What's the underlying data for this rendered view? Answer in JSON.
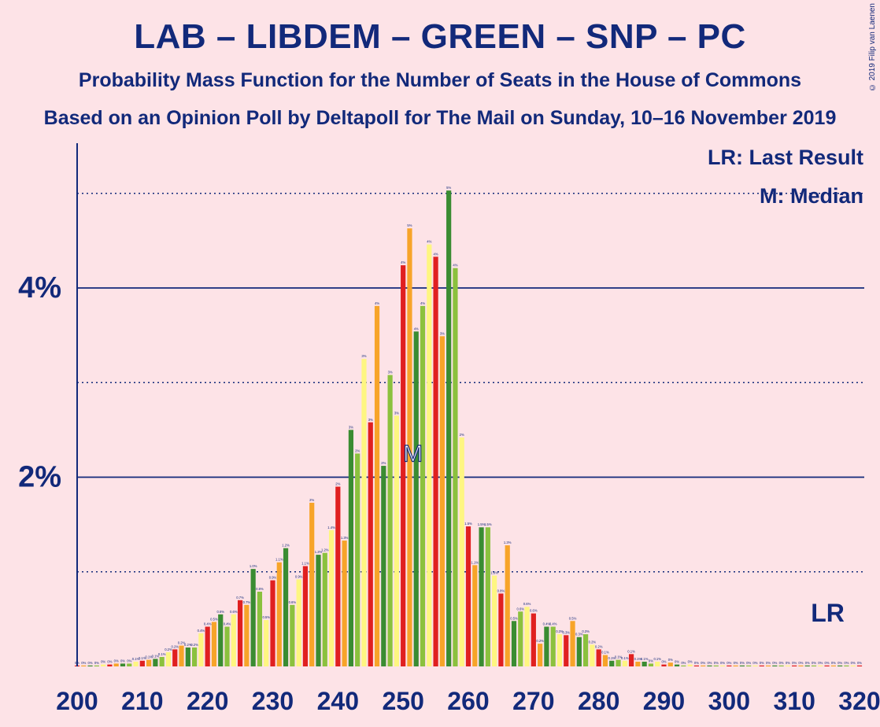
{
  "title": "LAB – LIBDEM – GREEN – SNP – PC",
  "subtitle": "Probability Mass Function for the Number of Seats in the House of Commons",
  "subtitle2": "Based on an Opinion Poll by Deltapoll for The Mail on Sunday, 10–16 November 2019",
  "copyright": "© 2019 Filip van Laenen",
  "legend": {
    "last_result": "LR: Last Result",
    "median": "M: Median"
  },
  "markers": {
    "median_symbol": "M",
    "last_result_symbol": "LR"
  },
  "colors": {
    "background": "#fde3e7",
    "axis": "#12297a",
    "palette": [
      "#e02020",
      "#f7a429",
      "#3a8c32",
      "#8bc13e",
      "#fef681"
    ]
  },
  "chart_data": {
    "type": "bar",
    "xlabel": "",
    "ylabel": "",
    "x_ticks": [
      "200",
      "210",
      "220",
      "230",
      "240",
      "250",
      "260",
      "270",
      "280",
      "290",
      "300",
      "310",
      "320"
    ],
    "y_ticks": [
      "2%",
      "4%"
    ],
    "ylim": [
      0,
      5.5
    ],
    "median_seat": 251,
    "last_result_seat": 315,
    "x": [
      200,
      201,
      202,
      203,
      204,
      205,
      206,
      207,
      208,
      209,
      210,
      211,
      212,
      213,
      214,
      215,
      216,
      217,
      218,
      219,
      220,
      221,
      222,
      223,
      224,
      225,
      226,
      227,
      228,
      229,
      230,
      231,
      232,
      233,
      234,
      235,
      236,
      237,
      238,
      239,
      240,
      241,
      242,
      243,
      244,
      245,
      246,
      247,
      248,
      249,
      250,
      251,
      252,
      253,
      254,
      255,
      256,
      257,
      258,
      259,
      260,
      261,
      262,
      263,
      264,
      265,
      266,
      267,
      268,
      269,
      270,
      271,
      272,
      273,
      274,
      275,
      276,
      277,
      278,
      279,
      280,
      281,
      282,
      283,
      284,
      285,
      286,
      287,
      288,
      289,
      290,
      291,
      292,
      293,
      294,
      295,
      296,
      297,
      298,
      299,
      300,
      301,
      302,
      303,
      304,
      305,
      306,
      307,
      308,
      309,
      310,
      311,
      312,
      313,
      314,
      315,
      316,
      317,
      318,
      319,
      320
    ],
    "values": [
      0.01,
      0.01,
      0.01,
      0.01,
      0.02,
      0.02,
      0.03,
      0.03,
      0.03,
      0.05,
      0.06,
      0.07,
      0.08,
      0.1,
      0.15,
      0.18,
      0.22,
      0.2,
      0.2,
      0.35,
      0.42,
      0.47,
      0.55,
      0.42,
      0.55,
      0.7,
      0.65,
      1.03,
      0.79,
      0.49,
      0.91,
      1.1,
      1.25,
      0.65,
      0.92,
      1.06,
      1.73,
      1.18,
      1.2,
      1.44,
      1.9,
      1.33,
      2.5,
      2.25,
      3.25,
      2.58,
      3.81,
      2.12,
      3.08,
      2.65,
      4.24,
      4.63,
      3.54,
      3.81,
      4.46,
      4.33,
      3.49,
      5.03,
      4.21,
      2.42,
      1.48,
      1.07,
      1.47,
      1.47,
      0.96,
      0.77,
      1.28,
      0.48,
      0.58,
      0.63,
      0.56,
      0.24,
      0.42,
      0.42,
      0.34,
      0.33,
      0.48,
      0.31,
      0.34,
      0.23,
      0.18,
      0.12,
      0.06,
      0.07,
      0.06,
      0.13,
      0.05,
      0.05,
      0.03,
      0.05,
      0.02,
      0.04,
      0.02,
      0.01,
      0.02,
      0.01,
      0.01,
      0.01,
      0.01,
      0.01,
      0.01,
      0.01,
      0.01,
      0.01,
      0.01,
      0.01,
      0.01,
      0.01,
      0.01,
      0.01,
      0.01,
      0.01,
      0.01,
      0.01,
      0.01,
      0.01,
      0.01,
      0.01,
      0.01,
      0.01,
      0.01
    ],
    "data_labels": [
      "0%",
      "0%",
      "0%",
      "0%",
      "0%",
      "0%",
      "0%",
      "0%",
      "0%",
      "0.1%",
      "0.1%",
      "0.1%",
      "0.1%",
      "0.1%",
      "0.2%",
      "0.2%",
      "0.2%",
      "0.2%",
      "0.2%",
      "0.4%",
      "0.4%",
      "0.5%",
      "0.6%",
      "0.4%",
      "0.6%",
      "0.7%",
      "0.7%",
      "1.0%",
      "0.8%",
      "0.5%",
      "0.9%",
      "1.1%",
      "1.2%",
      "0.6%",
      "0.9%",
      "1.1%",
      "2%",
      "1.2%",
      "1.2%",
      "1.4%",
      "2%",
      "1.3%",
      "3%",
      "2%",
      "3%",
      "3%",
      "4%",
      "2%",
      "3%",
      "3%",
      "4%",
      "5%",
      "4%",
      "4%",
      "4%",
      "4%",
      "3%",
      "5%",
      "4%",
      "2%",
      "1.5%",
      "1.1%",
      "1.5%",
      "1.5%",
      "1.0%",
      "0.8%",
      "1.3%",
      "0.5%",
      "0.6%",
      "0.6%",
      "0.6%",
      "0.2%",
      "0.4%",
      "0.4%",
      "0.3%",
      "0.3%",
      "0.5%",
      "0.3%",
      "0.3%",
      "0.2%",
      "0.2%",
      "0.1%",
      "0.1%",
      "0.1%",
      "0.1%",
      "0.1%",
      "0.1%",
      "0.1%",
      "0%",
      "0.1%",
      "0%",
      "0%",
      "0%",
      "0%",
      "0%",
      "0%",
      "0%",
      "0%",
      "0%",
      "0%",
      "0%",
      "0%",
      "0%",
      "0%",
      "0%",
      "0%",
      "0%",
      "0%",
      "0%",
      "0%",
      "0%",
      "0%",
      "0%",
      "0%",
      "0%",
      "0%",
      "0%",
      "0%",
      "0%",
      "0%",
      "0%"
    ],
    "grid": "solid lines at labeled ticks, dotted lines at 1%, 3% and 5%",
    "legend_position": "top-right"
  }
}
